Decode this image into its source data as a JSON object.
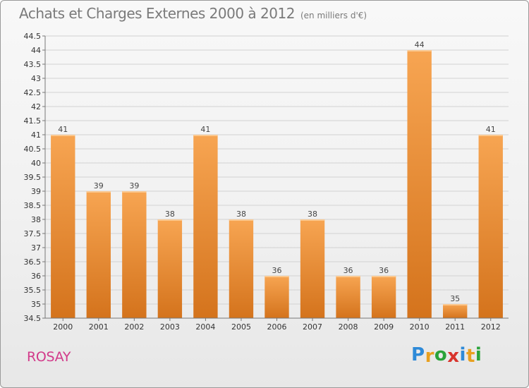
{
  "header": {
    "title": "Achats et Charges Externes 2000 à 2012",
    "unit": "(en milliers d'€)"
  },
  "footer": {
    "commune": "ROSAY",
    "logo_letters": [
      "P",
      "r",
      "o",
      "x",
      "i",
      "t",
      "i"
    ],
    "logo_colors": [
      "#2e8ad8",
      "#e8a020",
      "#2aa33a",
      "#d8342c",
      "#2e8ad8",
      "#e8a020",
      "#2aa33a"
    ]
  },
  "chart_data": {
    "type": "bar",
    "title": "Achats et Charges Externes 2000 à 2012",
    "subtitle": "(en milliers d'€)",
    "categories": [
      "2000",
      "2001",
      "2002",
      "2003",
      "2004",
      "2005",
      "2006",
      "2007",
      "2008",
      "2009",
      "2010",
      "2011",
      "2012"
    ],
    "values": [
      41,
      39,
      39,
      38,
      41,
      38,
      36,
      38,
      36,
      36,
      44,
      35,
      41
    ],
    "value_labels": [
      "41",
      "39",
      "39",
      "38",
      "41",
      "38",
      "36",
      "38",
      "36",
      "36",
      "44",
      "35",
      "41"
    ],
    "ylim": [
      34.5,
      44.5
    ],
    "yticks": [
      "34.5",
      "35",
      "35.5",
      "36",
      "36.5",
      "37",
      "37.5",
      "38",
      "38.5",
      "39",
      "39.5",
      "40",
      "40.5",
      "41",
      "41.5",
      "42",
      "42.5",
      "43",
      "43.5",
      "44",
      "44.5"
    ],
    "grid": true,
    "bar_color_top": "#f7a552",
    "bar_color_bottom": "#d4731c"
  }
}
